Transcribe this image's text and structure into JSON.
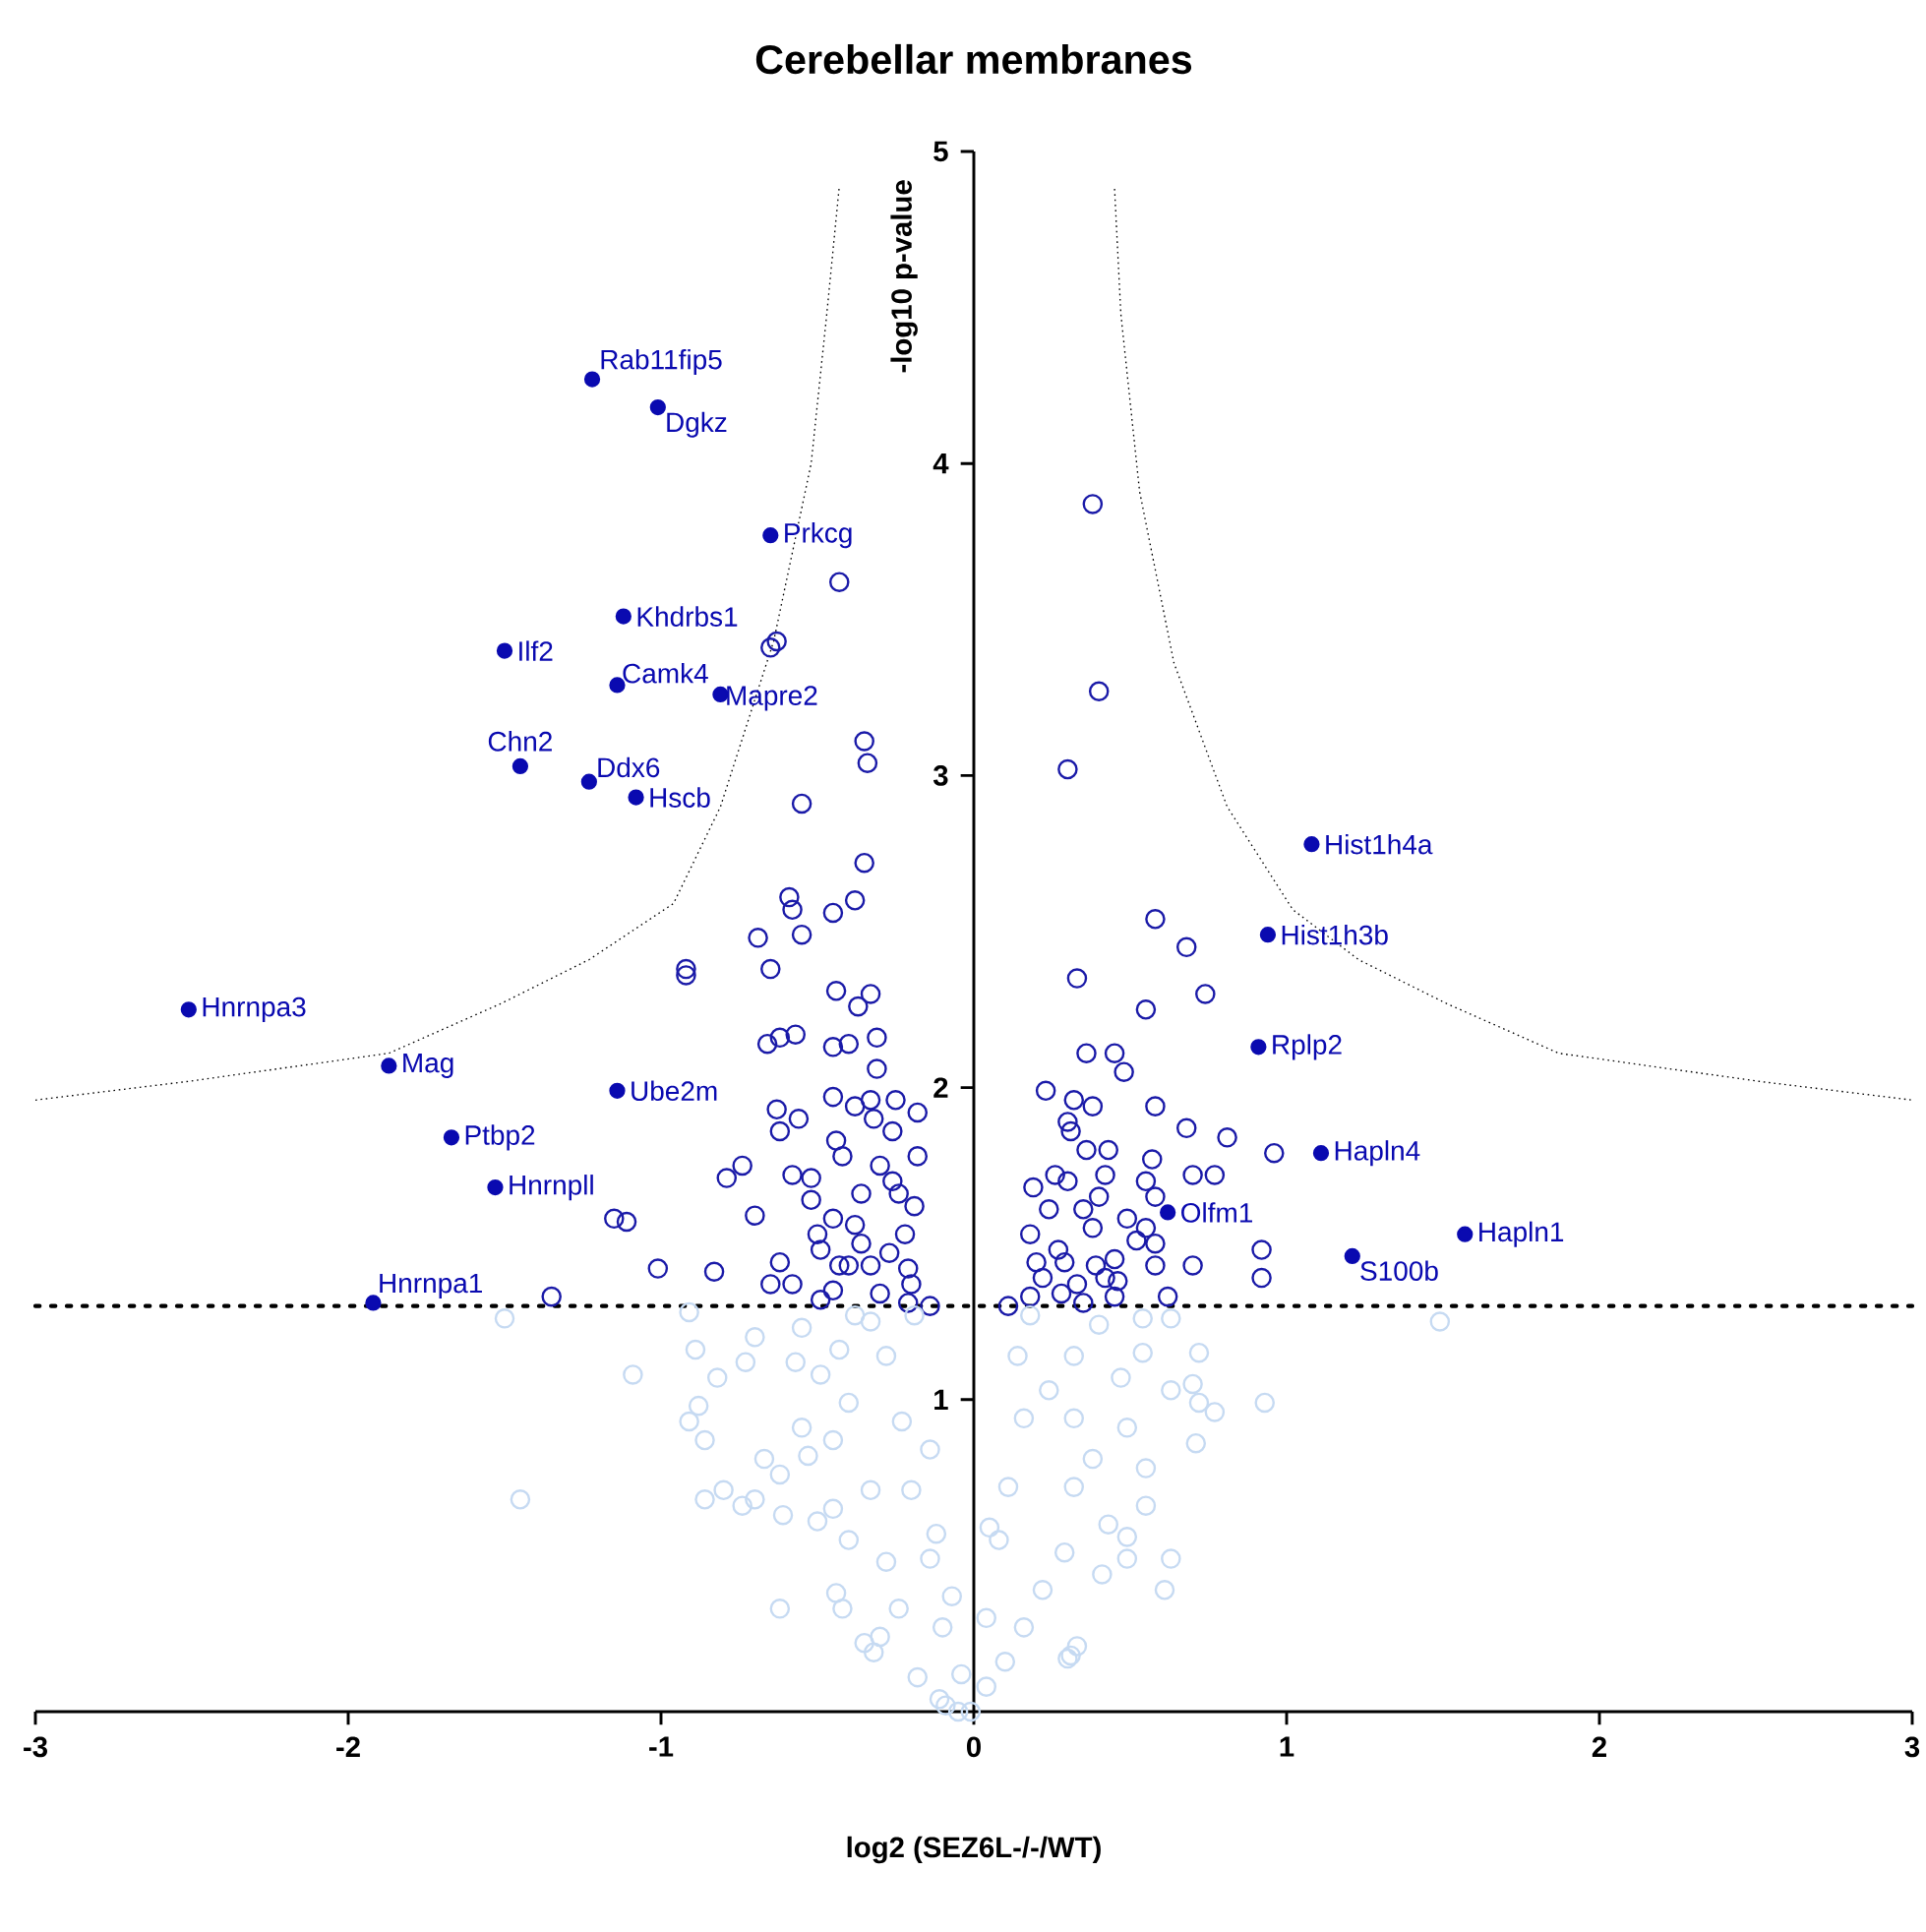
{
  "chart_data": {
    "type": "scatter",
    "title": "Cerebellar membranes",
    "xlabel": "log2 (SEZ6L-/-/WT)",
    "ylabel": "-log10 p-value",
    "xlim": [
      -3,
      3
    ],
    "ylim": [
      0,
      5
    ],
    "xticks": [
      -3,
      -2,
      -1,
      0,
      1,
      2,
      3
    ],
    "yticks": [
      1,
      2,
      3,
      4,
      5
    ],
    "marker": "circle",
    "series": [
      {
        "color": "#0a0ab0",
        "x": [
          -1.22,
          -1.01,
          -0.65,
          -1.12,
          -1.5,
          -1.14,
          -0.81,
          -1.45,
          -1.23,
          -1.08,
          -2.51,
          -1.87,
          -1.14,
          -1.67,
          -1.53,
          -1.92,
          1.08,
          0.94,
          0.91,
          1.11,
          0.62,
          1.57,
          1.21
        ],
        "values": [
          4.27,
          4.18,
          3.77,
          3.51,
          3.4,
          3.29,
          3.26,
          3.03,
          2.98,
          2.93,
          2.25,
          2.07,
          1.99,
          1.84,
          1.68,
          1.31,
          2.78,
          2.49,
          2.13,
          1.79,
          1.6,
          1.53,
          1.46
        ]
      },
      {
        "color": "#1a1aa8",
        "x": [
          -0.43,
          -0.63,
          -0.65,
          -0.35,
          -0.34,
          -0.55,
          -0.35,
          -0.59,
          -0.58,
          -0.45,
          -0.38,
          -0.69,
          -0.55,
          -0.92,
          -0.92,
          -0.65,
          -0.44,
          -0.33,
          -0.37,
          -0.66,
          -0.62,
          -0.57,
          -0.45,
          -0.4,
          -0.31,
          -0.31,
          -0.45,
          -0.38,
          -0.33,
          -0.25,
          -0.18,
          -0.63,
          -0.56,
          -0.62,
          -0.32,
          -0.26,
          -0.44,
          -0.42,
          -0.3,
          -0.18,
          -0.79,
          -0.74,
          -0.58,
          -0.52,
          -0.52,
          -0.36,
          -0.26,
          -0.24,
          -0.19,
          -1.15,
          -1.11,
          -0.7,
          -0.45,
          -0.38,
          -0.5,
          -0.49,
          -0.36,
          -0.27,
          -0.22,
          -1.01,
          -0.83,
          -0.62,
          -0.65,
          -0.58,
          -0.43,
          -0.4,
          -0.33,
          -0.21,
          -0.2,
          -0.49,
          -0.45,
          -0.3,
          -0.21,
          -0.14,
          -1.35,
          0.38,
          0.4,
          0.3,
          0.58,
          0.68,
          0.33,
          0.74,
          0.55,
          0.36,
          0.45,
          0.48,
          0.23,
          0.58,
          0.32,
          0.38,
          0.68,
          0.81,
          0.96,
          0.3,
          0.31,
          0.36,
          0.43,
          0.57,
          0.7,
          0.77,
          0.19,
          0.26,
          0.3,
          0.42,
          0.55,
          0.24,
          0.35,
          0.4,
          0.58,
          0.49,
          0.18,
          0.27,
          0.38,
          0.52,
          0.58,
          0.55,
          0.2,
          0.22,
          0.29,
          0.33,
          0.39,
          0.45,
          0.46,
          0.58,
          0.7,
          0.92,
          0.92,
          0.62,
          0.18,
          0.11,
          0.35,
          0.28,
          0.45,
          0.42
        ],
        "values": [
          3.62,
          3.43,
          3.41,
          3.11,
          3.04,
          2.91,
          2.72,
          2.61,
          2.57,
          2.56,
          2.6,
          2.48,
          2.49,
          2.38,
          2.36,
          2.38,
          2.31,
          2.3,
          2.26,
          2.14,
          2.16,
          2.17,
          2.13,
          2.14,
          2.16,
          2.06,
          1.97,
          1.94,
          1.96,
          1.96,
          1.92,
          1.93,
          1.9,
          1.86,
          1.9,
          1.86,
          1.83,
          1.78,
          1.75,
          1.78,
          1.71,
          1.75,
          1.72,
          1.71,
          1.64,
          1.66,
          1.7,
          1.66,
          1.62,
          1.58,
          1.57,
          1.59,
          1.58,
          1.56,
          1.53,
          1.48,
          1.5,
          1.47,
          1.53,
          1.42,
          1.41,
          1.44,
          1.37,
          1.37,
          1.43,
          1.43,
          1.43,
          1.42,
          1.37,
          1.32,
          1.35,
          1.34,
          1.31,
          1.3,
          1.33,
          3.87,
          3.27,
          3.02,
          2.54,
          2.45,
          2.35,
          2.3,
          2.25,
          2.11,
          2.11,
          2.05,
          1.99,
          1.94,
          1.96,
          1.94,
          1.87,
          1.84,
          1.79,
          1.89,
          1.86,
          1.8,
          1.8,
          1.77,
          1.72,
          1.72,
          1.68,
          1.72,
          1.7,
          1.72,
          1.7,
          1.61,
          1.61,
          1.65,
          1.65,
          1.58,
          1.53,
          1.48,
          1.55,
          1.51,
          1.5,
          1.55,
          1.44,
          1.39,
          1.44,
          1.37,
          1.43,
          1.45,
          1.38,
          1.43,
          1.43,
          1.48,
          1.39,
          1.33,
          1.33,
          1.3,
          1.31,
          1.34,
          1.33,
          1.39
        ]
      },
      {
        "color": "#c6daf2",
        "x": [
          -1.5,
          -0.91,
          -0.89,
          -1.09,
          -0.82,
          -0.73,
          -0.7,
          -0.88,
          -0.91,
          -0.86,
          -1.45,
          -0.86,
          -0.8,
          -0.74,
          -0.7,
          -0.67,
          -0.62,
          -0.55,
          -0.53,
          -0.61,
          -0.5,
          -0.62,
          -0.57,
          -0.55,
          -0.49,
          -0.42,
          -0.35,
          -0.44,
          -0.45,
          -0.45,
          -0.43,
          -0.4,
          -0.32,
          -0.18,
          -0.09,
          -0.05,
          -0.33,
          -0.28,
          -0.23,
          -0.2,
          -0.14,
          -0.1,
          -0.4,
          -0.33,
          -0.28,
          -0.24,
          -0.38,
          -0.19,
          -0.14,
          -0.12,
          -0.07,
          -0.04,
          -0.3,
          -0.11,
          -0.01,
          1.49,
          0.93,
          0.77,
          0.72,
          0.7,
          0.63,
          0.72,
          0.71,
          0.54,
          0.63,
          0.54,
          0.63,
          0.61,
          0.55,
          0.49,
          0.49,
          0.41,
          0.33,
          0.3,
          0.55,
          0.49,
          0.47,
          0.4,
          0.32,
          0.32,
          0.32,
          0.29,
          0.22,
          0.16,
          0.1,
          0.04,
          0.14,
          0.16,
          0.11,
          0.08,
          0.04,
          0.18,
          0.24,
          0.38,
          0.43,
          0.05,
          0.31
        ],
        "values": [
          1.26,
          1.28,
          1.16,
          1.08,
          1.07,
          1.12,
          1.2,
          0.98,
          0.93,
          0.87,
          0.68,
          0.68,
          0.71,
          0.66,
          0.68,
          0.81,
          0.76,
          0.91,
          0.82,
          0.63,
          0.61,
          0.33,
          1.12,
          1.23,
          1.08,
          0.33,
          0.22,
          0.38,
          0.65,
          0.87,
          1.16,
          0.99,
          0.19,
          0.11,
          0.02,
          0.0,
          1.25,
          1.14,
          0.93,
          0.71,
          0.49,
          0.27,
          0.55,
          0.71,
          0.48,
          0.33,
          1.27,
          1.27,
          0.84,
          0.57,
          0.37,
          0.12,
          0.24,
          0.04,
          0.0,
          1.25,
          0.99,
          0.96,
          0.99,
          1.05,
          1.03,
          1.15,
          0.86,
          1.15,
          1.26,
          1.26,
          0.49,
          0.39,
          0.66,
          0.56,
          0.49,
          0.44,
          0.21,
          0.17,
          0.78,
          0.91,
          1.07,
          1.24,
          1.14,
          0.94,
          0.72,
          0.51,
          0.39,
          0.27,
          0.16,
          0.08,
          1.14,
          0.94,
          0.72,
          0.55,
          0.3,
          1.27,
          1.03,
          0.81,
          0.6,
          0.59,
          0.18
        ]
      },
      {
        "type": "line",
        "line_style": "dotted",
        "marker": "none",
        "color": "#000000",
        "x": [
          -3,
          -2.51,
          -1.87,
          -1.51,
          -1.23,
          -0.96,
          -0.81,
          -0.64,
          -0.52,
          -0.47,
          -0.43
        ],
        "values": [
          1.96,
          2.02,
          2.11,
          2.27,
          2.41,
          2.59,
          2.9,
          3.43,
          4.0,
          4.48,
          4.89
        ]
      },
      {
        "type": "line",
        "line_style": "dotted",
        "marker": "none",
        "color": "#000000",
        "x": [
          0.45,
          0.47,
          0.53,
          0.64,
          0.81,
          1.02,
          1.23,
          1.51,
          1.87,
          2.51,
          3
        ],
        "values": [
          4.88,
          4.48,
          3.91,
          3.36,
          2.9,
          2.57,
          2.41,
          2.27,
          2.11,
          2.02,
          1.96
        ]
      }
    ],
    "ref_lines": [
      {
        "axis": "y",
        "value": 1.3,
        "color": "#000000",
        "line_style": "dotted"
      }
    ],
    "annotations": [
      {
        "text": "Rab11fip5",
        "x": -1.22,
        "y": 4.27
      },
      {
        "text": "Dgkz",
        "x": -1.01,
        "y": 4.18
      },
      {
        "text": "Prkcg",
        "x": -0.65,
        "y": 3.77
      },
      {
        "text": "Khdrbs1",
        "x": -1.12,
        "y": 3.51
      },
      {
        "text": "Ilf2",
        "x": -1.5,
        "y": 3.4
      },
      {
        "text": "Camk4",
        "x": -1.14,
        "y": 3.29
      },
      {
        "text": "Mapre2",
        "x": -0.81,
        "y": 3.26
      },
      {
        "text": "Chn2",
        "x": -1.45,
        "y": 3.03
      },
      {
        "text": "Ddx6",
        "x": -1.23,
        "y": 2.98
      },
      {
        "text": "Hscb",
        "x": -1.08,
        "y": 2.93
      },
      {
        "text": "Hnrnpa3",
        "x": -2.51,
        "y": 2.25
      },
      {
        "text": "Mag",
        "x": -1.87,
        "y": 2.07
      },
      {
        "text": "Ube2m",
        "x": -1.14,
        "y": 1.99
      },
      {
        "text": "Ptbp2",
        "x": -1.67,
        "y": 1.84
      },
      {
        "text": "Hnrnpll",
        "x": -1.53,
        "y": 1.68
      },
      {
        "text": "Hnrnpa1",
        "x": -1.92,
        "y": 1.31
      },
      {
        "text": "Hist1h4a",
        "x": 1.08,
        "y": 2.78
      },
      {
        "text": "Hist1h3b",
        "x": 0.94,
        "y": 2.49
      },
      {
        "text": "Rplp2",
        "x": 0.91,
        "y": 2.13
      },
      {
        "text": "Hapln4",
        "x": 1.11,
        "y": 1.79
      },
      {
        "text": "Olfm1",
        "x": 0.62,
        "y": 1.6
      },
      {
        "text": "Hapln1",
        "x": 1.57,
        "y": 1.53
      },
      {
        "text": "S100b",
        "x": 1.21,
        "y": 1.46
      }
    ]
  }
}
